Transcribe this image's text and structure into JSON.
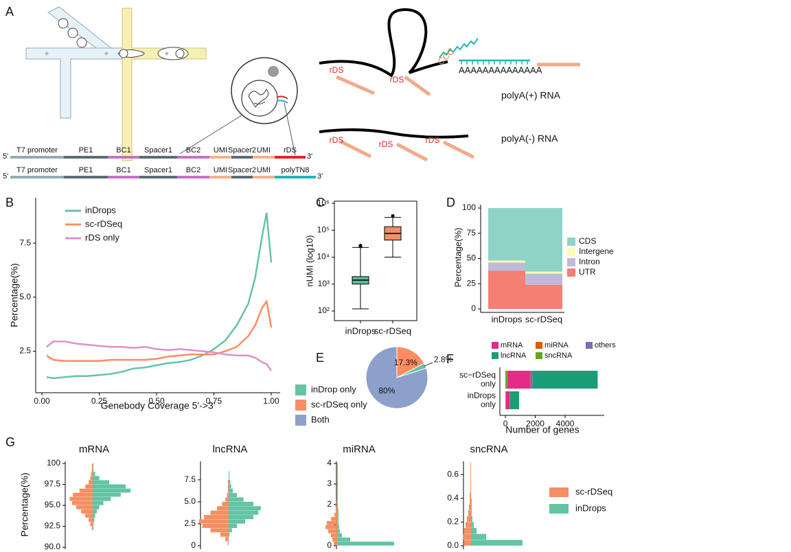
{
  "panel_labels": [
    "A",
    "B",
    "C",
    "D",
    "E",
    "F",
    "G"
  ],
  "diagram": {
    "barcodes": [
      {
        "start": "5'",
        "end": "3'",
        "segments": [
          {
            "label": "T7 promoter",
            "color": "#94abb4"
          },
          {
            "label": "PE1",
            "color": "#5c6e72"
          },
          {
            "label": "BC1",
            "color": "#c672c3"
          },
          {
            "label": "Spacer1",
            "color": "#5c6e72"
          },
          {
            "label": "BC2",
            "color": "#c672c3"
          },
          {
            "label": "UMI",
            "color": "#f5b08e"
          },
          {
            "label": "Spacer2",
            "color": "#5c6e72"
          },
          {
            "label": "UMI",
            "color": "#f5b08e"
          },
          {
            "label": "rDS",
            "color": "#e0262a"
          }
        ]
      },
      {
        "start": "5'",
        "end": "3'",
        "segments": [
          {
            "label": "T7 promoter",
            "color": "#94abb4"
          },
          {
            "label": "PE1",
            "color": "#5c6e72"
          },
          {
            "label": "BC1",
            "color": "#c672c3"
          },
          {
            "label": "Spacer1",
            "color": "#5c6e72"
          },
          {
            "label": "BC2",
            "color": "#c672c3"
          },
          {
            "label": "UMI",
            "color": "#f5b08e"
          },
          {
            "label": "Spacer2",
            "color": "#5c6e72"
          },
          {
            "label": "UMI",
            "color": "#f5b08e"
          },
          {
            "label": "polyTN8",
            "color": "#22b5b5"
          }
        ]
      }
    ],
    "rna": {
      "rds_labels": [
        "rDS",
        "rDS",
        "rDS",
        "rDS",
        "rDS"
      ],
      "ccc": "CCC",
      "polya": "AAAAAAAAAAAAAA",
      "polya_plus": "polyA(+) RNA",
      "polya_minus": "polyA(-) RNA"
    }
  },
  "chart_data": [
    {
      "type": "line",
      "xlabel": "Genebody Coverage 5'->3'",
      "ylabel": "Percentage(%)",
      "x": [
        0.02,
        0.05,
        0.1,
        0.15,
        0.2,
        0.25,
        0.3,
        0.35,
        0.4,
        0.45,
        0.5,
        0.55,
        0.6,
        0.65,
        0.7,
        0.75,
        0.8,
        0.85,
        0.9,
        0.93,
        0.96,
        0.98,
        1.0
      ],
      "series": [
        {
          "name": "inDrops",
          "color": "#66c2a5",
          "values": [
            1.3,
            1.25,
            1.3,
            1.35,
            1.35,
            1.4,
            1.45,
            1.55,
            1.7,
            1.75,
            1.85,
            1.95,
            2.0,
            2.1,
            2.3,
            2.6,
            3.0,
            3.7,
            4.7,
            5.9,
            7.8,
            8.9,
            6.6
          ]
        },
        {
          "name": "sc-rDSeq",
          "color": "#fc8d62",
          "values": [
            2.3,
            2.1,
            2.05,
            2.05,
            2.05,
            2.05,
            2.1,
            2.1,
            2.1,
            2.1,
            2.15,
            2.25,
            2.3,
            2.35,
            2.35,
            2.35,
            2.5,
            2.7,
            3.2,
            3.7,
            4.5,
            4.8,
            3.6
          ]
        },
        {
          "name": "rDS only",
          "color": "#e08fc9",
          "values": [
            2.7,
            2.95,
            2.95,
            2.85,
            2.8,
            2.75,
            2.7,
            2.7,
            2.65,
            2.7,
            2.6,
            2.55,
            2.6,
            2.55,
            2.5,
            2.45,
            2.35,
            2.3,
            2.3,
            2.2,
            2.0,
            1.9,
            1.6
          ]
        }
      ],
      "xlim": [
        -0.027,
        1.039
      ],
      "xticks": [
        {
          "value": 0,
          "label": "0.00"
        },
        0.25,
        {
          "value": 0.5,
          "label": "0.50"
        },
        0.75,
        {
          "value": 1,
          "label": "1.00"
        }
      ],
      "ylim": [
        0.58,
        9.6
      ],
      "yticks": [
        2.5,
        {
          "value": 5,
          "label": "5.0"
        },
        7.5
      ],
      "legend": "top-left"
    },
    {
      "type": "box",
      "ylabel": "nUMI (log10)",
      "categories": [
        "inDrops",
        "sc-rDSeq"
      ],
      "colors": [
        "#5db99b",
        "#ea9168"
      ],
      "boxes": [
        {
          "min": 120,
          "q1": 1000,
          "median": 1400,
          "q3": 1900,
          "max": 23000,
          "outliers": [
            25000,
            27000
          ]
        },
        {
          "min": 10000,
          "q1": 43000,
          "median": 76000,
          "q3": 135000,
          "max": 300000,
          "outliers": [
            340000
          ]
        }
      ],
      "log_scale": true,
      "ylim": [
        44,
        1200000
      ],
      "yticks": [
        {
          "value": 100,
          "label": "10²"
        },
        {
          "value": 1000,
          "label": "10³"
        },
        {
          "value": 10000,
          "label": "10⁴"
        },
        {
          "value": 100000,
          "label": "10⁵"
        },
        {
          "value": 1000000,
          "label": "10⁶"
        }
      ]
    },
    {
      "type": "stacked_bar",
      "ylabel": "Percentage(%)",
      "categories": [
        "inDrops",
        "sc-rDSeq"
      ],
      "series": [
        {
          "name": "UTR",
          "color": "#f47f72",
          "values": [
            38,
            24
          ]
        },
        {
          "name": "Intron",
          "color": "#bebadb",
          "values": [
            8,
            11
          ]
        },
        {
          "name": "Intergene",
          "color": "#fdfdb3",
          "values": [
            2,
            2
          ]
        },
        {
          "name": "CDS",
          "color": "#8ed3c7",
          "values": [
            52,
            63
          ]
        }
      ],
      "ylim": [
        -3.4,
        103.4
      ],
      "yticks": [
        0,
        25,
        50,
        75,
        100
      ],
      "legend": "right"
    },
    {
      "type": "pie",
      "categories": [
        "inDrop only",
        "sc-rDSeq only",
        "Both"
      ],
      "values": [
        2.8,
        17.3,
        80
      ],
      "value_labels": [
        "2.8%",
        "17.3%",
        "80%"
      ],
      "colors": [
        "#66c2a5",
        "#fc8d62",
        "#8da0cb"
      ],
      "legend": "left"
    },
    {
      "type": "stacked_barh",
      "xlabel": "Number of genes",
      "categories": [
        "sc−rDSeq only",
        "inDrops only"
      ],
      "series": [
        {
          "name": "sncRNA",
          "color": "#66a61e",
          "values": [
            150,
            40
          ]
        },
        {
          "name": "mRNA",
          "color": "#e7298a",
          "values": [
            1500,
            240
          ]
        },
        {
          "name": "miRNA",
          "color": "#d95f02",
          "values": [
            30,
            5
          ]
        },
        {
          "name": "others",
          "color": "#7570b3",
          "values": [
            150,
            15
          ]
        },
        {
          "name": "lncRNA",
          "color": "#1b9e77",
          "values": [
            4350,
            620
          ]
        }
      ],
      "xlim": [
        -370,
        6620
      ],
      "xticks": [
        0,
        2000,
        4000
      ],
      "legend": "top"
    },
    {
      "type": "mirrored_histogram",
      "ylabel": "Percentage(%)",
      "series": [
        {
          "name": "sc-rDSeq",
          "color": "#f58f63"
        },
        {
          "name": "inDrops",
          "color": "#62c4a2"
        }
      ],
      "legend": "right",
      "subplots": [
        {
          "title": "mRNA",
          "ylim": [
            89.75,
            100.25
          ],
          "yticks": [
            {
              "value": 90,
              "label": "90.0"
            },
            92.5,
            {
              "value": 95,
              "label": "95.0"
            },
            97.5,
            100
          ],
          "bins": [
            92,
            92.5,
            93,
            93.5,
            94,
            94.5,
            95,
            95.5,
            96,
            96.5,
            97,
            97.5,
            98,
            98.5,
            99,
            99.5,
            100
          ],
          "counts": [
            [
              1,
              3,
              5,
              9,
              14,
              20,
              25,
              28,
              24,
              16,
              9,
              5,
              3,
              2,
              1,
              1
            ],
            [
              1,
              1,
              2,
              3,
              5,
              8,
              13,
              22,
              34,
              46,
              40,
              20,
              8,
              3,
              1,
              1
            ]
          ]
        },
        {
          "title": "lncRNA",
          "ylim": [
            -0.4,
            9.6
          ],
          "yticks": [
            0,
            2.5,
            {
              "value": 5,
              "label": "5.0"
            },
            7.5
          ],
          "bins": [
            0,
            0.5,
            1,
            1.5,
            2,
            2.5,
            3,
            3.5,
            4,
            4.5,
            5,
            5.5,
            6,
            6.5,
            7,
            7.5,
            8,
            8.5,
            9
          ],
          "counts": [
            [
              1,
              4,
              10,
              22,
              32,
              36,
              30,
              22,
              14,
              8,
              4,
              2,
              1,
              1,
              1,
              0,
              0,
              0
            ],
            [
              0,
              0,
              1,
              4,
              10,
              20,
              30,
              36,
              39,
              30,
              18,
              10,
              5,
              3,
              2,
              1,
              1,
              0
            ]
          ]
        },
        {
          "title": "miRNA",
          "ylim": [
            -0.17,
            4.1
          ],
          "yticks": [
            0,
            1,
            2,
            3,
            4
          ],
          "bins": [
            0,
            0.2,
            0.4,
            0.6,
            0.8,
            1,
            1.2,
            1.4,
            1.6,
            1.8,
            2,
            2.2,
            2.4,
            2.6,
            2.8,
            3,
            3.2,
            3.4,
            3.6,
            3.8,
            4
          ],
          "counts": [
            [
              6,
              8,
              10,
              14,
              18,
              16,
              10,
              5,
              3,
              2,
              2,
              1,
              1,
              1,
              1,
              1,
              1,
              1,
              1,
              1
            ],
            [
              82,
              18,
              6,
              3,
              2,
              1,
              1,
              1,
              1,
              0,
              0,
              0,
              0,
              0,
              0,
              0,
              0,
              0,
              0,
              0
            ]
          ]
        },
        {
          "title": "sncRNA",
          "ylim": [
            -0.029,
            0.711
          ],
          "yticks": [
            {
              "value": 0,
              "label": "0.0"
            },
            0.2,
            0.4,
            0.6
          ],
          "bins": [
            0,
            0.05,
            0.1,
            0.15,
            0.2,
            0.25,
            0.3,
            0.35,
            0.4,
            0.45,
            0.5,
            0.55,
            0.6,
            0.65,
            0.7
          ],
          "counts": [
            [
              10,
              12,
              10,
              8,
              6,
              4,
              3,
              2,
              2,
              1,
              1,
              1,
              1,
              1
            ],
            [
              75,
              22,
              8,
              4,
              2,
              1,
              1,
              1,
              0,
              0,
              0,
              0,
              0,
              0
            ]
          ]
        }
      ]
    }
  ]
}
